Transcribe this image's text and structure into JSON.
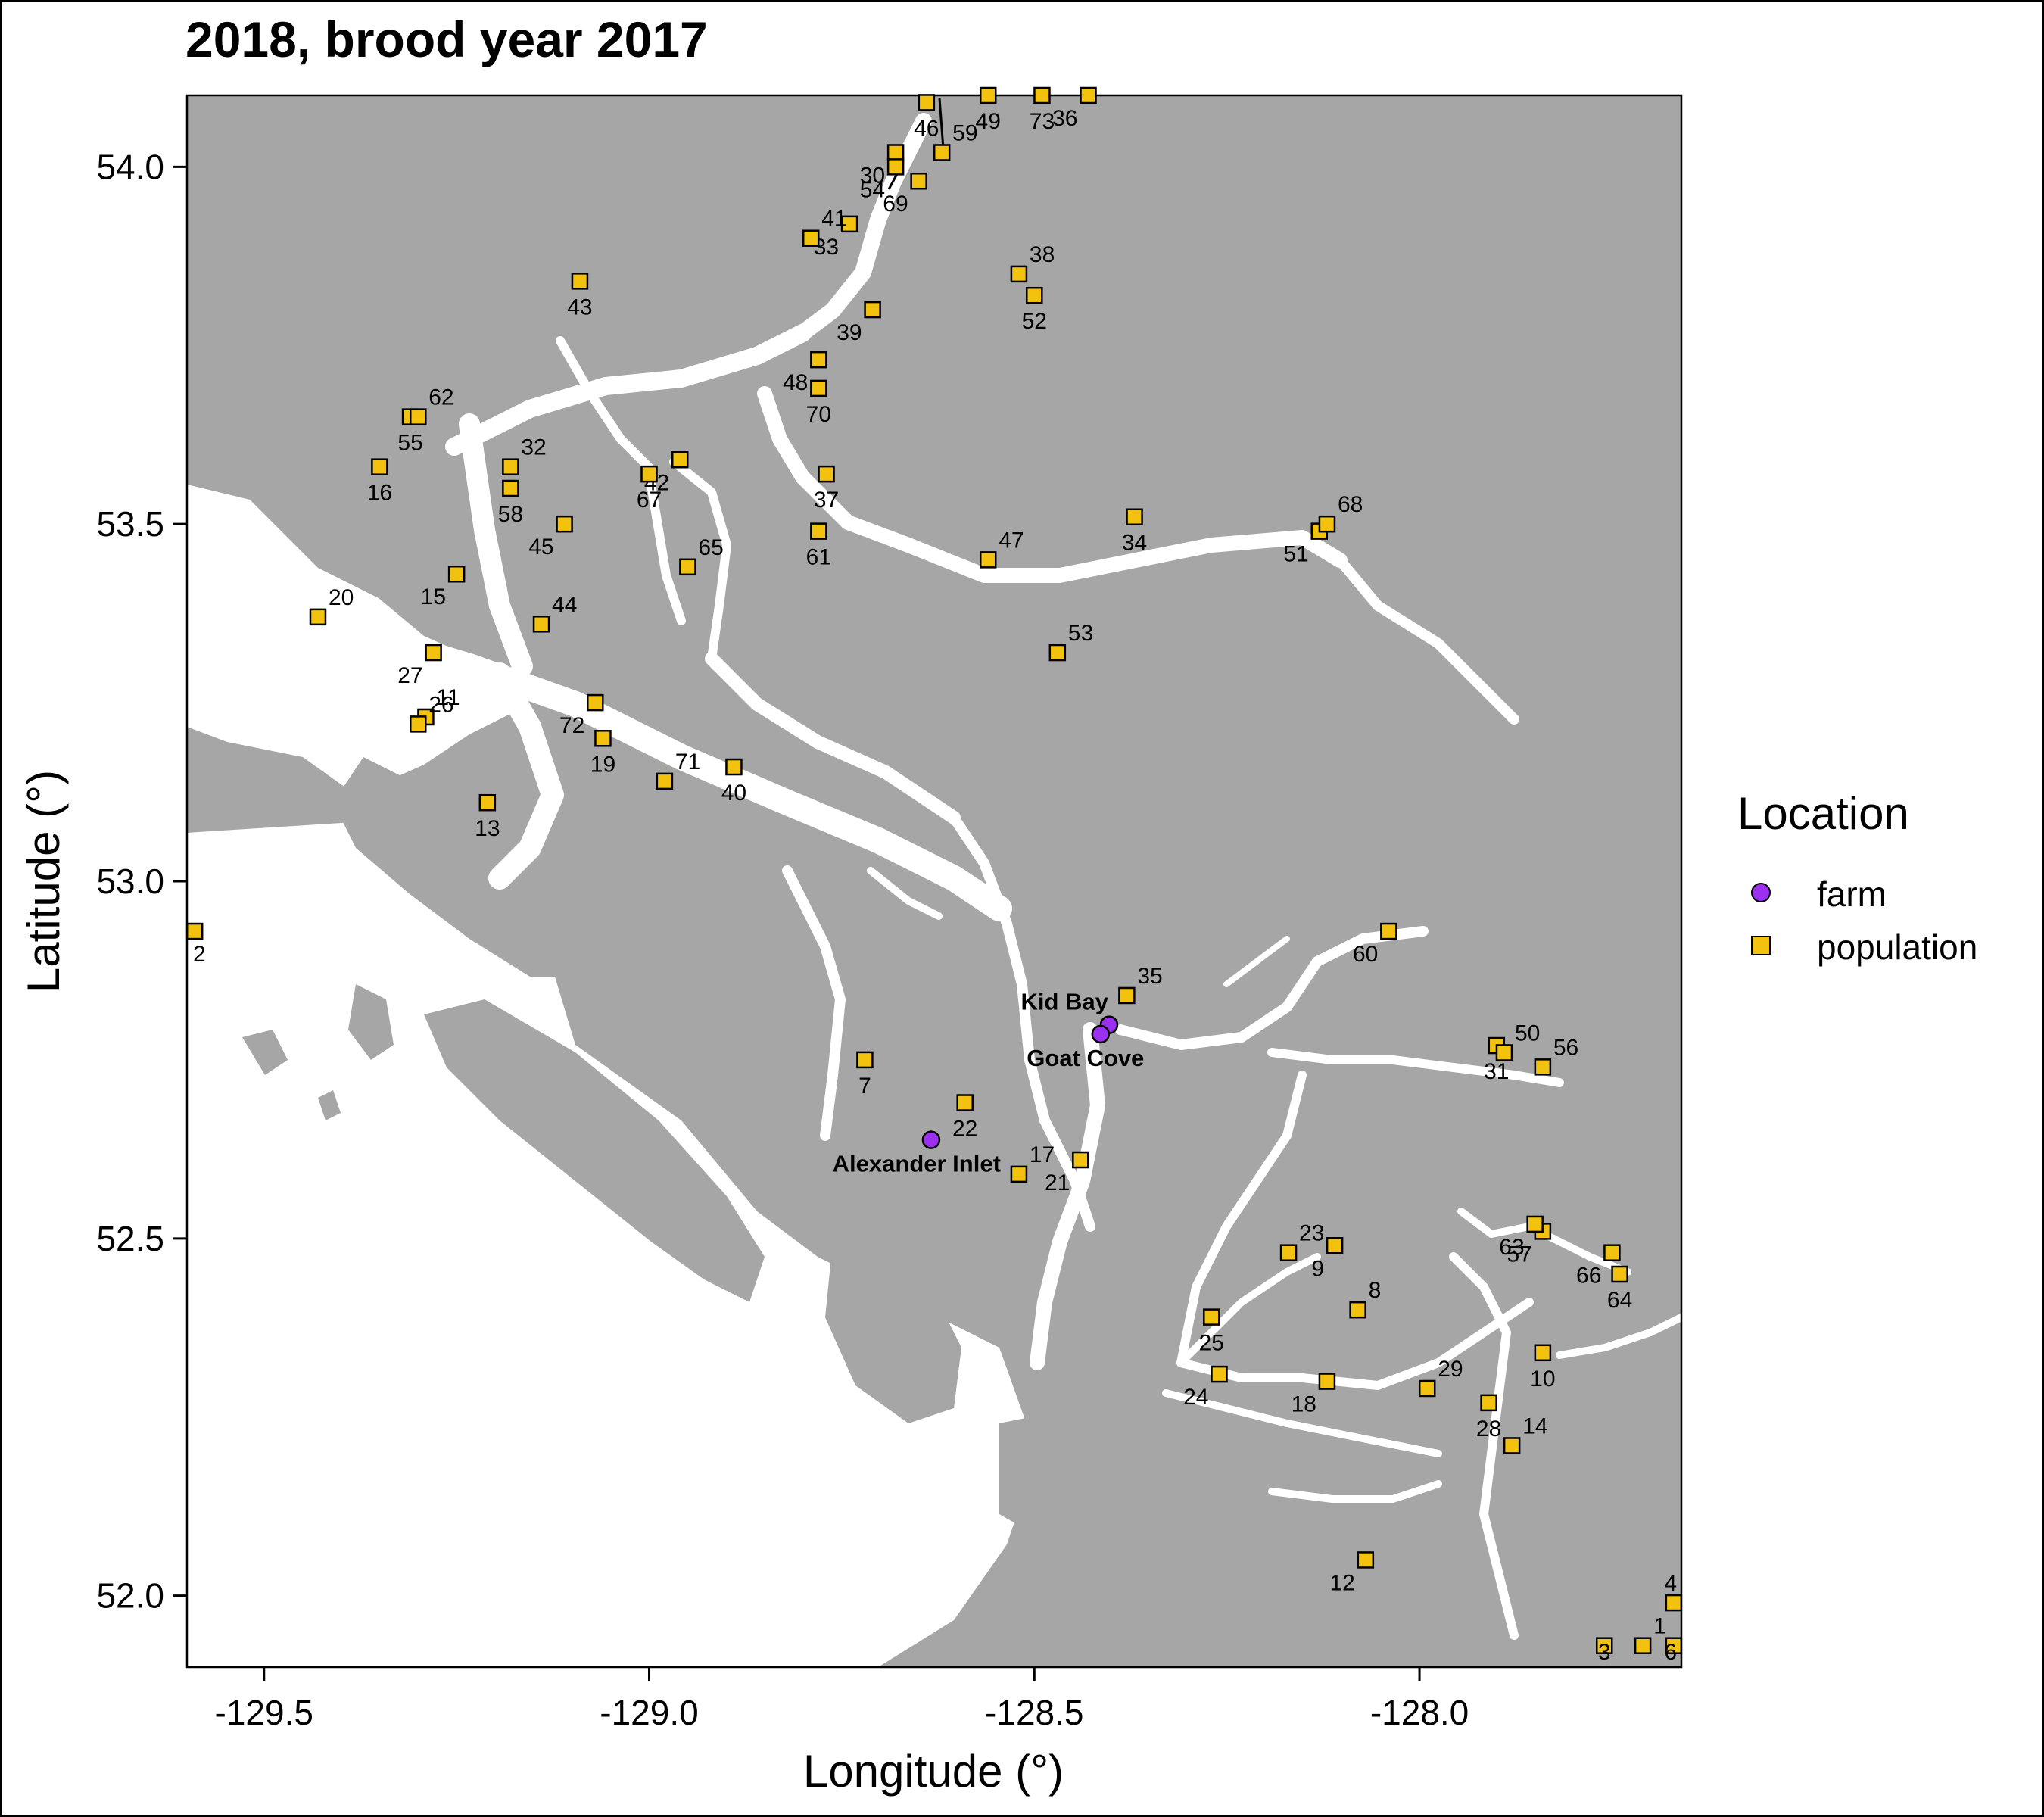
{
  "title": "2018, brood year 2017",
  "axes": {
    "xlabel": "Longitude (°)",
    "ylabel": "Latitude (°)",
    "xlim": [
      -129.6,
      -127.66
    ],
    "ylim": [
      51.9,
      54.1
    ],
    "xticks": [
      -129.5,
      -129.0,
      -128.5,
      -128.0
    ],
    "xtick_labels": [
      "-129.5",
      "-129.0",
      "-128.5",
      "-128.0"
    ],
    "yticks": [
      52.0,
      52.5,
      53.0,
      53.5,
      54.0
    ],
    "ytick_labels": [
      "52.0",
      "52.5",
      "53.0",
      "53.5",
      "54.0"
    ]
  },
  "legend": {
    "title": "Location",
    "items": [
      {
        "label": "farm",
        "color": "#9b30f0",
        "shape": "circle"
      },
      {
        "label": "population",
        "color": "#f2c20e",
        "shape": "square"
      }
    ]
  },
  "colors": {
    "land": "#a6a6a6",
    "water": "#ffffff",
    "farm": "#9b30f0",
    "population": "#f2c20e"
  },
  "chart_data": {
    "type": "scatter",
    "title": "2018, brood year 2017",
    "xlabel": "Longitude (°)",
    "ylabel": "Latitude (°)",
    "xlim": [
      -129.6,
      -127.66
    ],
    "ylim": [
      51.9,
      54.1
    ],
    "grid": false,
    "legend_placement": "right",
    "farms": [
      {
        "label": "Kid Bay",
        "lon": -128.403,
        "lat": 52.799
      },
      {
        "label": "Goat Cove",
        "lon": -128.414,
        "lat": 52.786
      },
      {
        "label": "Alexander Inlet",
        "lon": -128.634,
        "lat": 52.638
      }
    ],
    "populations": [
      {
        "id": "1",
        "lon": -127.71,
        "lat": 51.93
      },
      {
        "id": "2",
        "lon": -129.59,
        "lat": 52.93
      },
      {
        "id": "3",
        "lon": -127.76,
        "lat": 51.93
      },
      {
        "id": "4",
        "lon": -127.67,
        "lat": 51.99
      },
      {
        "id": "6",
        "lon": -127.67,
        "lat": 51.93
      },
      {
        "id": "7",
        "lon": -128.72,
        "lat": 52.75
      },
      {
        "id": "8",
        "lon": -128.08,
        "lat": 52.4
      },
      {
        "id": "9",
        "lon": -128.11,
        "lat": 52.49
      },
      {
        "id": "10",
        "lon": -127.84,
        "lat": 52.34
      },
      {
        "id": "11",
        "lon": -129.29,
        "lat": 53.23
      },
      {
        "id": "12",
        "lon": -128.07,
        "lat": 52.05
      },
      {
        "id": "13",
        "lon": -129.21,
        "lat": 53.11
      },
      {
        "id": "14",
        "lon": -127.88,
        "lat": 52.21
      },
      {
        "id": "15",
        "lon": -129.25,
        "lat": 53.43
      },
      {
        "id": "16",
        "lon": -129.35,
        "lat": 53.58
      },
      {
        "id": "17",
        "lon": -128.52,
        "lat": 52.59
      },
      {
        "id": "18",
        "lon": -128.12,
        "lat": 52.3
      },
      {
        "id": "19",
        "lon": -129.06,
        "lat": 53.2
      },
      {
        "id": "20",
        "lon": -129.43,
        "lat": 53.37
      },
      {
        "id": "21",
        "lon": -128.44,
        "lat": 52.61
      },
      {
        "id": "22",
        "lon": -128.59,
        "lat": 52.69
      },
      {
        "id": "23",
        "lon": -128.17,
        "lat": 52.48
      },
      {
        "id": "24",
        "lon": -128.26,
        "lat": 52.31
      },
      {
        "id": "25",
        "lon": -128.27,
        "lat": 52.39
      },
      {
        "id": "26",
        "lon": -129.3,
        "lat": 53.22
      },
      {
        "id": "27",
        "lon": -129.28,
        "lat": 53.32
      },
      {
        "id": "28",
        "lon": -127.91,
        "lat": 52.27
      },
      {
        "id": "29",
        "lon": -127.99,
        "lat": 52.29
      },
      {
        "id": "30",
        "lon": -128.68,
        "lat": 54.02
      },
      {
        "id": "31",
        "lon": -127.9,
        "lat": 52.77
      },
      {
        "id": "32",
        "lon": -129.18,
        "lat": 53.58
      },
      {
        "id": "33",
        "lon": -128.74,
        "lat": 53.92
      },
      {
        "id": "34",
        "lon": -128.37,
        "lat": 53.51
      },
      {
        "id": "35",
        "lon": -128.38,
        "lat": 52.84
      },
      {
        "id": "36",
        "lon": -128.43,
        "lat": 54.1
      },
      {
        "id": "37",
        "lon": -128.77,
        "lat": 53.57
      },
      {
        "id": "38",
        "lon": -128.52,
        "lat": 53.85
      },
      {
        "id": "39",
        "lon": -128.71,
        "lat": 53.8
      },
      {
        "id": "40",
        "lon": -128.89,
        "lat": 53.16
      },
      {
        "id": "41",
        "lon": -128.79,
        "lat": 53.9
      },
      {
        "id": "42",
        "lon": -128.96,
        "lat": 53.59
      },
      {
        "id": "43",
        "lon": -129.09,
        "lat": 53.84
      },
      {
        "id": "44",
        "lon": -129.14,
        "lat": 53.36
      },
      {
        "id": "45",
        "lon": -129.11,
        "lat": 53.5
      },
      {
        "id": "46",
        "lon": -128.64,
        "lat": 54.09
      },
      {
        "id": "47",
        "lon": -128.56,
        "lat": 53.45
      },
      {
        "id": "48",
        "lon": -128.78,
        "lat": 53.73
      },
      {
        "id": "49",
        "lon": -128.56,
        "lat": 54.1
      },
      {
        "id": "50",
        "lon": -127.89,
        "lat": 52.76
      },
      {
        "id": "51",
        "lon": -128.13,
        "lat": 53.49
      },
      {
        "id": "52",
        "lon": -128.5,
        "lat": 53.82
      },
      {
        "id": "53",
        "lon": -128.47,
        "lat": 53.32
      },
      {
        "id": "54",
        "lon": -128.68,
        "lat": 54.0
      },
      {
        "id": "55",
        "lon": -129.31,
        "lat": 53.65
      },
      {
        "id": "56",
        "lon": -127.84,
        "lat": 52.74
      },
      {
        "id": "57",
        "lon": -127.84,
        "lat": 52.51
      },
      {
        "id": "58",
        "lon": -129.18,
        "lat": 53.55
      },
      {
        "id": "59",
        "lon": -128.62,
        "lat": 54.02
      },
      {
        "id": "60",
        "lon": -128.04,
        "lat": 52.93
      },
      {
        "id": "61",
        "lon": -128.78,
        "lat": 53.49
      },
      {
        "id": "62",
        "lon": -129.3,
        "lat": 53.65
      },
      {
        "id": "63",
        "lon": -127.85,
        "lat": 52.52
      },
      {
        "id": "64",
        "lon": -127.74,
        "lat": 52.45
      },
      {
        "id": "65",
        "lon": -128.95,
        "lat": 53.44
      },
      {
        "id": "66",
        "lon": -127.75,
        "lat": 52.48
      },
      {
        "id": "67",
        "lon": -129.0,
        "lat": 53.57
      },
      {
        "id": "68",
        "lon": -128.12,
        "lat": 53.5
      },
      {
        "id": "69",
        "lon": -128.65,
        "lat": 53.98
      },
      {
        "id": "70",
        "lon": -128.78,
        "lat": 53.69
      },
      {
        "id": "71",
        "lon": -128.98,
        "lat": 53.14
      },
      {
        "id": "72",
        "lon": -129.07,
        "lat": 53.25
      },
      {
        "id": "73",
        "lon": -128.49,
        "lat": 54.1
      }
    ]
  }
}
